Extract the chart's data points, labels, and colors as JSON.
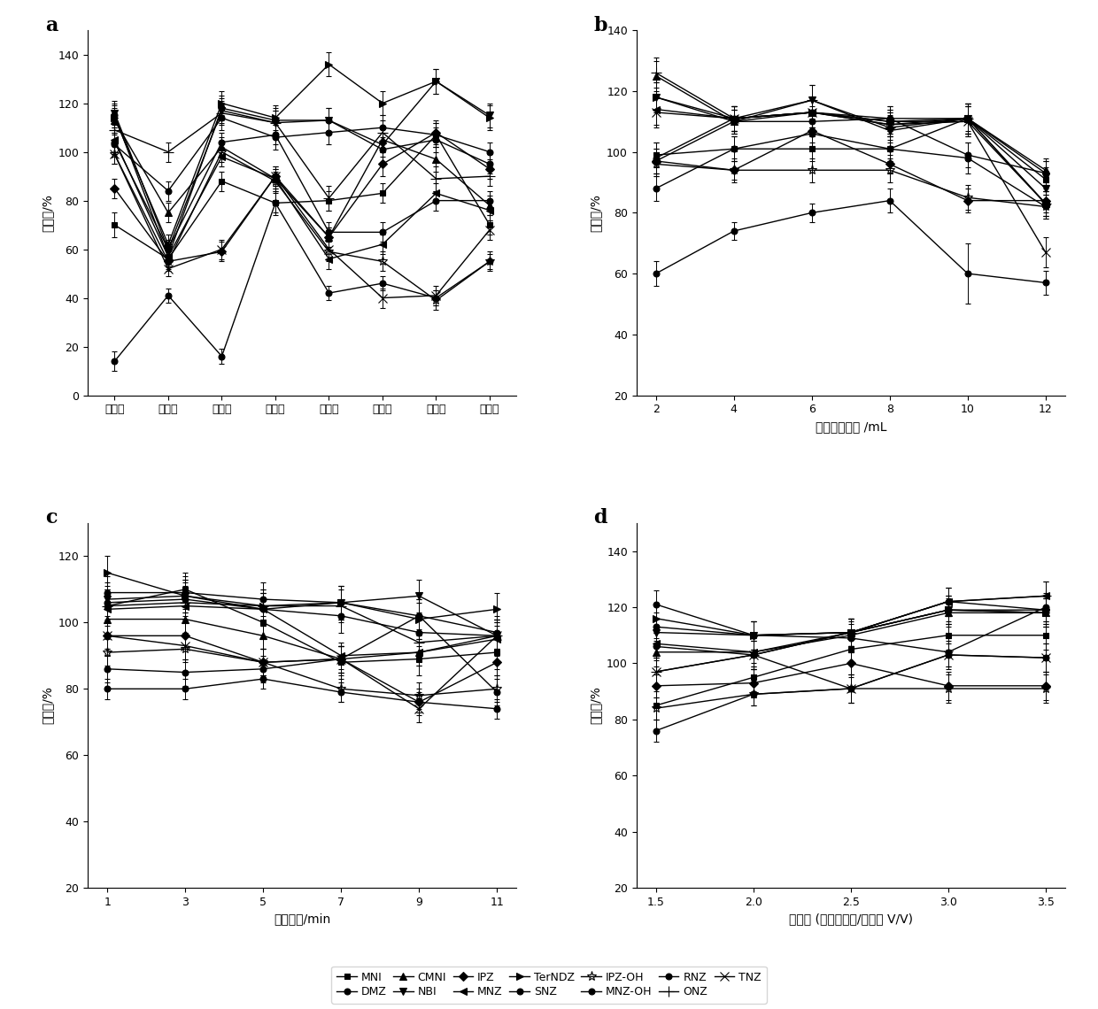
{
  "panel_a": {
    "xlabel_categories": [
      "正戊醇",
      "正己醇",
      "正庚醇",
      "正辛醇",
      "正壬醇",
      "正癸醇",
      "十一醇",
      "十二醇"
    ],
    "ylabel": "回收率/%",
    "ylim": [
      0,
      150
    ],
    "yticks": [
      0,
      20,
      40,
      60,
      80,
      100,
      120,
      140
    ],
    "series": {
      "MNI": [
        70,
        56,
        88,
        79,
        80,
        83,
        107,
        70
      ],
      "DMZ": [
        104,
        60,
        104,
        107,
        67,
        67,
        80,
        80
      ],
      "CMNI": [
        113,
        75,
        102,
        89,
        65,
        105,
        97,
        78
      ],
      "NBI": [
        116,
        60,
        117,
        112,
        113,
        103,
        129,
        115
      ],
      "IPZ": [
        85,
        55,
        59,
        90,
        65,
        95,
        108,
        93
      ],
      "MNZ": [
        105,
        57,
        98,
        89,
        56,
        62,
        83,
        76
      ],
      "TerNDZ": [
        114,
        62,
        120,
        114,
        136,
        120,
        129,
        114
      ],
      "SNZ": [
        14,
        41,
        16,
        79,
        42,
        46,
        40,
        55
      ],
      "IPZ-OH": [
        99,
        55,
        100,
        88,
        59,
        55,
        39,
        55
      ],
      "MNZ-OH": [
        103,
        84,
        114,
        106,
        108,
        110,
        107,
        100
      ],
      "RNZ": [
        115,
        57,
        118,
        113,
        113,
        101,
        105,
        95
      ],
      "ONZ": [
        109,
        100,
        116,
        112,
        81,
        108,
        89,
        90
      ],
      "TNZ": [
        99,
        52,
        60,
        90,
        60,
        40,
        41,
        68
      ]
    },
    "errors": {
      "MNI": [
        5,
        3,
        4,
        5,
        4,
        4,
        5,
        4
      ],
      "DMZ": [
        4,
        3,
        4,
        4,
        4,
        4,
        4,
        4
      ],
      "CMNI": [
        5,
        4,
        4,
        4,
        4,
        5,
        5,
        4
      ],
      "NBI": [
        5,
        4,
        5,
        5,
        5,
        5,
        5,
        5
      ],
      "IPZ": [
        4,
        4,
        4,
        4,
        4,
        5,
        5,
        4
      ],
      "MNZ": [
        5,
        4,
        4,
        4,
        4,
        4,
        4,
        4
      ],
      "TerNDZ": [
        5,
        4,
        5,
        5,
        5,
        5,
        5,
        5
      ],
      "SNZ": [
        4,
        3,
        3,
        4,
        3,
        3,
        3,
        4
      ],
      "IPZ-OH": [
        4,
        3,
        4,
        4,
        4,
        4,
        4,
        3
      ],
      "MNZ-OH": [
        4,
        4,
        5,
        5,
        5,
        5,
        5,
        4
      ],
      "RNZ": [
        5,
        4,
        5,
        5,
        5,
        5,
        5,
        4
      ],
      "ONZ": [
        5,
        4,
        5,
        5,
        5,
        5,
        5,
        4
      ],
      "TNZ": [
        4,
        3,
        4,
        4,
        4,
        4,
        4,
        4
      ]
    }
  },
  "panel_b": {
    "xlabel": "四氯吵嗁用量 /mL",
    "ylabel": "回收率/%",
    "xvalues": [
      2,
      4,
      6,
      8,
      10,
      12
    ],
    "ylim": [
      20,
      140
    ],
    "yticks": [
      20,
      40,
      60,
      80,
      100,
      120,
      140
    ],
    "series": {
      "MNI": [
        99,
        101,
        101,
        101,
        111,
        91
      ],
      "DMZ": [
        97,
        110,
        110,
        111,
        99,
        93
      ],
      "CMNI": [
        125,
        110,
        113,
        109,
        111,
        94
      ],
      "NBI": [
        118,
        110,
        117,
        107,
        111,
        88
      ],
      "IPZ": [
        97,
        94,
        107,
        96,
        84,
        84
      ],
      "MNZ": [
        114,
        111,
        113,
        110,
        110,
        83
      ],
      "TerNDZ": [
        118,
        111,
        113,
        110,
        111,
        83
      ],
      "SNZ": [
        60,
        74,
        80,
        84,
        60,
        57
      ],
      "IPZ-OH": [
        96,
        94,
        94,
        94,
        85,
        82
      ],
      "MNZ-OH": [
        88,
        101,
        106,
        101,
        98,
        82
      ],
      "RNZ": [
        98,
        111,
        113,
        111,
        111,
        93
      ],
      "ONZ": [
        126,
        111,
        117,
        108,
        111,
        83
      ],
      "TNZ": [
        113,
        111,
        113,
        109,
        110,
        67
      ]
    },
    "errors": {
      "MNI": [
        4,
        4,
        4,
        4,
        4,
        4
      ],
      "DMZ": [
        4,
        4,
        5,
        4,
        4,
        4
      ],
      "CMNI": [
        5,
        4,
        5,
        4,
        5,
        4
      ],
      "NBI": [
        5,
        4,
        5,
        4,
        5,
        4
      ],
      "IPZ": [
        4,
        3,
        4,
        3,
        4,
        4
      ],
      "MNZ": [
        5,
        4,
        5,
        4,
        5,
        4
      ],
      "TerNDZ": [
        5,
        4,
        5,
        4,
        5,
        4
      ],
      "SNZ": [
        4,
        3,
        3,
        4,
        10,
        4
      ],
      "IPZ-OH": [
        4,
        4,
        4,
        4,
        4,
        4
      ],
      "MNZ-OH": [
        4,
        4,
        4,
        4,
        5,
        4
      ],
      "RNZ": [
        5,
        4,
        5,
        4,
        5,
        4
      ],
      "ONZ": [
        5,
        4,
        5,
        4,
        5,
        4
      ],
      "TNZ": [
        5,
        4,
        5,
        4,
        5,
        5
      ]
    }
  },
  "panel_c": {
    "xlabel": "涡旋时间/min",
    "ylabel": "回收率/%",
    "xvalues": [
      1,
      3,
      5,
      7,
      9,
      11
    ],
    "ylim": [
      20,
      130
    ],
    "yticks": [
      20,
      40,
      60,
      80,
      100,
      120
    ],
    "series": {
      "MNI": [
        105,
        110,
        100,
        88,
        89,
        91
      ],
      "DMZ": [
        106,
        107,
        104,
        102,
        97,
        96
      ],
      "CMNI": [
        101,
        101,
        96,
        89,
        91,
        96
      ],
      "NBI": [
        107,
        108,
        104,
        106,
        108,
        96
      ],
      "IPZ": [
        96,
        96,
        88,
        89,
        76,
        88
      ],
      "MNZ": [
        104,
        105,
        104,
        90,
        91,
        95
      ],
      "TerNDZ": [
        115,
        108,
        105,
        106,
        101,
        104
      ],
      "SNZ": [
        80,
        80,
        83,
        79,
        76,
        74
      ],
      "IPZ-OH": [
        91,
        92,
        88,
        80,
        78,
        80
      ],
      "MNZ-OH": [
        86,
        85,
        86,
        89,
        102,
        79
      ],
      "RNZ": [
        109,
        109,
        107,
        106,
        102,
        97
      ],
      "ONZ": [
        105,
        106,
        105,
        105,
        94,
        96
      ],
      "TNZ": [
        96,
        93,
        88,
        89,
        74,
        96
      ]
    },
    "errors": {
      "MNI": [
        5,
        5,
        5,
        5,
        5,
        5
      ],
      "DMZ": [
        5,
        5,
        5,
        5,
        4,
        4
      ],
      "CMNI": [
        4,
        4,
        4,
        4,
        4,
        5
      ],
      "NBI": [
        5,
        5,
        5,
        5,
        5,
        5
      ],
      "IPZ": [
        4,
        4,
        4,
        4,
        4,
        4
      ],
      "MNZ": [
        5,
        5,
        5,
        4,
        4,
        5
      ],
      "TerNDZ": [
        5,
        5,
        5,
        5,
        5,
        5
      ],
      "SNZ": [
        3,
        3,
        3,
        3,
        3,
        3
      ],
      "IPZ-OH": [
        4,
        4,
        4,
        4,
        4,
        4
      ],
      "MNZ-OH": [
        4,
        4,
        4,
        4,
        5,
        4
      ],
      "RNZ": [
        5,
        5,
        5,
        5,
        5,
        5
      ],
      "ONZ": [
        5,
        5,
        5,
        5,
        4,
        5
      ],
      "TNZ": [
        4,
        4,
        4,
        4,
        4,
        5
      ]
    }
  },
  "panel_d": {
    "xlabel": "体积比 (超分子溶剂/血液， V/V)",
    "ylabel": "回收率/%",
    "xvalues": [
      1.5,
      2.0,
      2.5,
      3.0,
      3.5
    ],
    "ylim": [
      20,
      150
    ],
    "yticks": [
      20,
      40,
      60,
      80,
      100,
      120,
      140
    ],
    "series": {
      "MNI": [
        85,
        95,
        105,
        110,
        110
      ],
      "DMZ": [
        106,
        103,
        111,
        122,
        119
      ],
      "CMNI": [
        104,
        104,
        110,
        118,
        118
      ],
      "NBI": [
        111,
        110,
        111,
        119,
        118
      ],
      "IPZ": [
        92,
        93,
        100,
        92,
        92
      ],
      "MNZ": [
        107,
        104,
        111,
        122,
        124
      ],
      "TerNDZ": [
        116,
        110,
        111,
        119,
        118
      ],
      "SNZ": [
        76,
        89,
        91,
        103,
        102
      ],
      "IPZ-OH": [
        84,
        89,
        91,
        91,
        91
      ],
      "MNZ-OH": [
        121,
        110,
        109,
        104,
        120
      ],
      "RNZ": [
        113,
        110,
        111,
        119,
        119
      ],
      "ONZ": [
        97,
        103,
        111,
        122,
        124
      ],
      "TNZ": [
        97,
        103,
        91,
        103,
        102
      ]
    },
    "errors": {
      "MNI": [
        5,
        5,
        5,
        5,
        5
      ],
      "DMZ": [
        5,
        5,
        5,
        5,
        5
      ],
      "CMNI": [
        5,
        5,
        5,
        5,
        5
      ],
      "NBI": [
        5,
        5,
        5,
        5,
        5
      ],
      "IPZ": [
        4,
        5,
        5,
        5,
        5
      ],
      "MNZ": [
        5,
        5,
        5,
        5,
        5
      ],
      "TerNDZ": [
        5,
        5,
        5,
        5,
        5
      ],
      "SNZ": [
        4,
        4,
        5,
        4,
        5
      ],
      "IPZ-OH": [
        4,
        4,
        5,
        5,
        5
      ],
      "MNZ-OH": [
        5,
        5,
        5,
        5,
        5
      ],
      "RNZ": [
        5,
        5,
        5,
        5,
        5
      ],
      "ONZ": [
        5,
        5,
        5,
        5,
        5
      ],
      "TNZ": [
        5,
        5,
        5,
        5,
        5
      ]
    }
  },
  "species_order": [
    "MNI",
    "DMZ",
    "CMNI",
    "NBI",
    "IPZ",
    "MNZ",
    "TerNDZ",
    "SNZ",
    "IPZ-OH",
    "MNZ-OH",
    "RNZ",
    "ONZ",
    "TNZ"
  ],
  "linewidth": 1.0,
  "font_size": 10
}
